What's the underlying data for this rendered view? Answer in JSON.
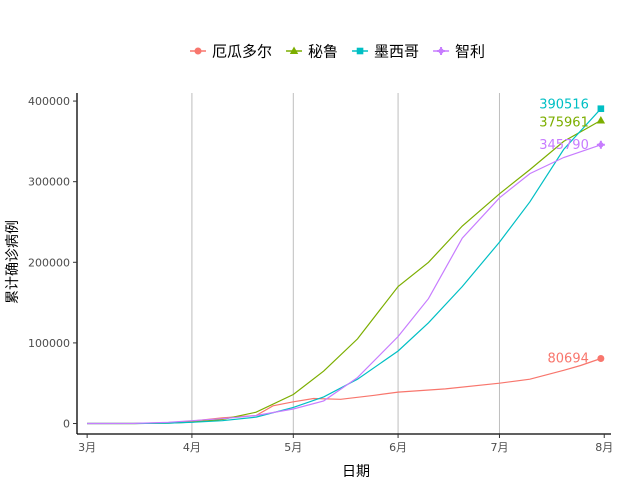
{
  "chart_data": {
    "type": "line",
    "title": "",
    "xlabel": "日期",
    "ylabel": "累计确诊病例",
    "x_ticks": [
      {
        "label": "3月",
        "date": "2020-03-01"
      },
      {
        "label": "4月",
        "date": "2020-04-01"
      },
      {
        "label": "5月",
        "date": "2020-05-01"
      },
      {
        "label": "6月",
        "date": "2020-06-01"
      },
      {
        "label": "7月",
        "date": "2020-07-01"
      },
      {
        "label": "8月",
        "date": "2020-08-01"
      }
    ],
    "y_ticks": [
      {
        "label": "0",
        "value": 0
      },
      {
        "label": "100000",
        "value": 100000
      },
      {
        "label": "200000",
        "value": 200000
      },
      {
        "label": "300000",
        "value": 300000
      },
      {
        "label": "400000",
        "value": 400000
      }
    ],
    "xlim": [
      "2020-02-27",
      "2020-08-03"
    ],
    "ylim": [
      -13000,
      410000
    ],
    "grid": "vertical major lines only",
    "legend_position": "top",
    "series": [
      {
        "name": "厄瓜多尔",
        "color": "#F8766D",
        "marker": "circle",
        "end_label": "80694",
        "points": [
          [
            "2020-03-01",
            0
          ],
          [
            "2020-03-15",
            30
          ],
          [
            "2020-03-25",
            1200
          ],
          [
            "2020-04-01",
            3000
          ],
          [
            "2020-04-10",
            7000
          ],
          [
            "2020-04-20",
            10000
          ],
          [
            "2020-04-25",
            22000
          ],
          [
            "2020-05-01",
            27000
          ],
          [
            "2020-05-07",
            31000
          ],
          [
            "2020-05-15",
            30000
          ],
          [
            "2020-05-25",
            35000
          ],
          [
            "2020-06-01",
            39000
          ],
          [
            "2020-06-15",
            43000
          ],
          [
            "2020-07-01",
            50000
          ],
          [
            "2020-07-10",
            55000
          ],
          [
            "2020-07-20",
            66000
          ],
          [
            "2020-07-25",
            72000
          ],
          [
            "2020-07-31",
            80694
          ]
        ]
      },
      {
        "name": "秘鲁",
        "color": "#7CAE00",
        "marker": "triangle",
        "end_label": "375961",
        "points": [
          [
            "2020-03-01",
            0
          ],
          [
            "2020-03-15",
            50
          ],
          [
            "2020-03-25",
            500
          ],
          [
            "2020-04-01",
            1800
          ],
          [
            "2020-04-10",
            5000
          ],
          [
            "2020-04-20",
            14000
          ],
          [
            "2020-05-01",
            36000
          ],
          [
            "2020-05-10",
            65000
          ],
          [
            "2020-05-20",
            105000
          ],
          [
            "2020-06-01",
            170000
          ],
          [
            "2020-06-10",
            200000
          ],
          [
            "2020-06-20",
            245000
          ],
          [
            "2020-07-01",
            285000
          ],
          [
            "2020-07-10",
            315000
          ],
          [
            "2020-07-20",
            350000
          ],
          [
            "2020-07-31",
            375961
          ]
        ]
      },
      {
        "name": "墨西哥",
        "color": "#00BFC4",
        "marker": "square",
        "end_label": "390516",
        "points": [
          [
            "2020-03-01",
            0
          ],
          [
            "2020-03-15",
            50
          ],
          [
            "2020-03-25",
            500
          ],
          [
            "2020-04-01",
            1500
          ],
          [
            "2020-04-10",
            3500
          ],
          [
            "2020-04-20",
            8000
          ],
          [
            "2020-05-01",
            20000
          ],
          [
            "2020-05-10",
            33000
          ],
          [
            "2020-05-20",
            55000
          ],
          [
            "2020-06-01",
            90000
          ],
          [
            "2020-06-10",
            125000
          ],
          [
            "2020-06-20",
            170000
          ],
          [
            "2020-07-01",
            225000
          ],
          [
            "2020-07-10",
            275000
          ],
          [
            "2020-07-20",
            340000
          ],
          [
            "2020-07-31",
            390516
          ]
        ]
      },
      {
        "name": "智利",
        "color": "#C77CFF",
        "marker": "plus",
        "end_label": "345790",
        "points": [
          [
            "2020-03-01",
            0
          ],
          [
            "2020-03-15",
            100
          ],
          [
            "2020-03-25",
            1500
          ],
          [
            "2020-04-01",
            3500
          ],
          [
            "2020-04-10",
            6000
          ],
          [
            "2020-04-20",
            10000
          ],
          [
            "2020-05-01",
            18000
          ],
          [
            "2020-05-10",
            28000
          ],
          [
            "2020-05-20",
            57000
          ],
          [
            "2020-06-01",
            108000
          ],
          [
            "2020-06-10",
            155000
          ],
          [
            "2020-06-20",
            230000
          ],
          [
            "2020-07-01",
            280000
          ],
          [
            "2020-07-10",
            310000
          ],
          [
            "2020-07-20",
            330000
          ],
          [
            "2020-07-31",
            345790
          ]
        ]
      }
    ]
  }
}
